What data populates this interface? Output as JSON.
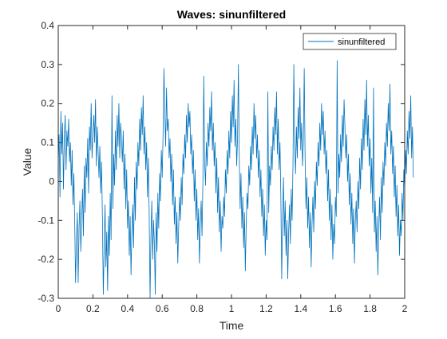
{
  "chart_data": {
    "type": "line",
    "title": "Waves: sinunfiltered",
    "xlabel": "Time",
    "ylabel": "Value",
    "xlim": [
      0,
      2
    ],
    "ylim": [
      -0.3,
      0.4
    ],
    "x_ticks": [
      0,
      0.2,
      0.4,
      0.6,
      0.8,
      1,
      1.2,
      1.4,
      1.6,
      1.8,
      2
    ],
    "x_tick_labels": [
      "0",
      "0.2",
      "0.4",
      "0.6",
      "0.8",
      "1",
      "1.2",
      "1.4",
      "1.6",
      "1.8",
      "2"
    ],
    "y_ticks": [
      -0.3,
      -0.2,
      -0.1,
      0,
      0.1,
      0.2,
      0.3,
      0.4
    ],
    "y_tick_labels": [
      "-0.3",
      "-0.2",
      "-0.1",
      "0",
      "0.1",
      "0.2",
      "0.3",
      "0.4"
    ],
    "grid": false,
    "legend_position": "top-right",
    "series": [
      {
        "name": "sinunfiltered",
        "color": "#0072BD",
        "x_start": 0,
        "x_step": 0.005,
        "y": [
          0.05,
          0.12,
          -0.04,
          0.18,
          0.07,
          0.15,
          -0.02,
          0.11,
          0.17,
          0.03,
          0.13,
          0.09,
          0.16,
          0.05,
          0.1,
          -0.01,
          0.08,
          -0.06,
          0.02,
          -0.11,
          -0.04,
          -0.15,
          -0.08,
          -0.26,
          -0.12,
          -0.05,
          -0.18,
          -0.1,
          -0.02,
          -0.14,
          0.04,
          -0.08,
          0.06,
          0.01,
          0.11,
          -0.03,
          0.14,
          0.08,
          0.2,
          0.06,
          0.12,
          0.17,
          0.1,
          0.21,
          0.04,
          0.14,
          0.08,
          0.01,
          0.09,
          -0.03,
          0.05,
          -0.1,
          0.01,
          -0.17,
          -0.06,
          -0.22,
          -0.13,
          -0.28,
          -0.09,
          -0.19,
          -0.03,
          -0.15,
          0.02,
          -0.07,
          0.07,
          -0.01,
          0.13,
          0.03,
          0.17,
          0.09,
          0.2,
          0.06,
          0.15,
          0.11,
          0.05,
          0.13,
          -0.02,
          0.07,
          -0.07,
          0.03,
          -0.12,
          -0.05,
          -0.19,
          -0.09,
          -0.24,
          -0.13,
          -0.06,
          -0.17,
          0.01,
          -0.1,
          0.05,
          -0.02,
          0.1,
          0.04,
          0.16,
          0.08,
          0.19,
          0.12,
          0.22,
          0.07,
          0.14,
          0.03,
          0.1,
          -0.04,
          0.06,
          -0.09,
          0.02,
          -0.14,
          -0.05,
          -0.2,
          -0.1,
          -0.16,
          -0.29,
          -0.08,
          -0.18,
          -0.03,
          -0.12,
          0.02,
          -0.05,
          0.08,
          0.01,
          0.12,
          0.05,
          0.18,
          0.09,
          0.24,
          0.13,
          0.16,
          0.06,
          0.11,
          0.0,
          0.07,
          -0.06,
          0.03,
          -0.11,
          -0.04,
          -0.16,
          -0.08,
          -0.21,
          -0.12,
          -0.04,
          -0.1,
          0.01,
          -0.06,
          0.07,
          0.02,
          0.12,
          0.06,
          0.17,
          0.1,
          0.2,
          0.14,
          0.18,
          0.07,
          0.12,
          0.02,
          0.08,
          -0.05,
          0.03,
          -0.1,
          -0.02,
          -0.15,
          -0.07,
          -0.21,
          -0.11,
          -0.05,
          -0.14,
          0.0,
          -0.08,
          0.05,
          -0.01,
          0.1,
          0.04,
          0.15,
          0.09,
          0.19,
          0.13,
          0.23,
          0.08,
          0.15,
          0.04,
          0.1,
          -0.03,
          0.06,
          -0.08,
          0.01,
          -0.13,
          -0.05,
          -0.18,
          -0.09,
          -0.12,
          -0.04,
          -0.09,
          0.03,
          -0.03,
          0.08,
          0.02,
          0.13,
          0.06,
          0.18,
          0.1,
          0.22,
          0.14,
          0.26,
          0.09,
          0.16,
          0.04,
          0.11,
          -0.02,
          0.06,
          -0.07,
          0.02,
          -0.12,
          -0.04,
          -0.17,
          -0.08,
          -0.23,
          -0.11,
          -0.03,
          -0.07,
          0.04,
          -0.01,
          0.09,
          0.03,
          0.14,
          0.07,
          0.2,
          0.11,
          0.17,
          0.06,
          0.12,
          0.01,
          0.08,
          -0.04,
          0.03,
          -0.09,
          -0.02,
          -0.14,
          -0.06,
          -0.19,
          -0.1,
          -0.15,
          -0.03,
          -0.08,
          0.04,
          -0.01,
          0.09,
          0.03,
          0.14,
          0.08,
          0.19,
          0.12,
          0.23,
          0.07,
          0.16,
          0.03,
          0.1,
          -0.04,
          0.05,
          -0.09,
          0.01,
          -0.14,
          -0.05,
          -0.19,
          -0.1,
          -0.25,
          -0.13,
          -0.06,
          -0.16,
          -0.02,
          -0.1,
          0.04,
          -0.03,
          0.09,
          0.02,
          0.14,
          0.06,
          0.19,
          0.11,
          0.24,
          0.08,
          0.15,
          0.04,
          0.1,
          -0.02,
          0.06,
          -0.07,
          0.01,
          -0.12,
          -0.04,
          -0.17,
          -0.08,
          -0.22,
          -0.11,
          -0.04,
          -0.13,
          0.0,
          -0.07,
          0.05,
          -0.01,
          0.1,
          0.04,
          0.15,
          0.08,
          0.2,
          0.12,
          0.18,
          0.07,
          0.13,
          0.02,
          0.08,
          -0.05,
          0.03,
          -0.1,
          -0.02,
          -0.15,
          -0.06,
          -0.2,
          -0.11,
          -0.16,
          -0.04,
          -0.09,
          0.02,
          -0.03,
          0.07,
          0.01,
          0.12,
          0.05,
          0.17,
          0.09,
          0.21,
          0.14,
          0.06,
          0.12,
          0.0,
          0.07,
          -0.06,
          0.02,
          -0.11,
          -0.03,
          -0.16,
          -0.07,
          -0.21,
          -0.1,
          -0.05,
          -0.13,
          0.0,
          -0.07,
          0.06,
          -0.02,
          0.11,
          0.03,
          0.16,
          0.08,
          0.21,
          0.12,
          0.26,
          0.09,
          0.17,
          0.04,
          0.11,
          -0.03,
          0.06,
          -0.08,
          0.01,
          -0.13,
          -0.05,
          -0.18,
          -0.09,
          -0.24,
          -0.12,
          -0.04,
          -0.15,
          0.01,
          -0.08,
          0.05,
          -0.01,
          0.1,
          0.04,
          0.15,
          0.09,
          0.2,
          0.13,
          0.25,
          0.07,
          0.13,
          0.02,
          0.09,
          -0.04,
          0.04,
          -0.09,
          -0.01,
          -0.14,
          -0.06,
          -0.19,
          -0.1,
          -0.14,
          -0.03,
          -0.1,
          0.03,
          -0.02,
          0.08,
          0.02,
          0.13,
          0.07,
          0.18,
          0.11,
          0.22,
          0.06,
          0.14,
          0.01
        ]
      }
    ],
    "features": [
      {
        "x": 0.1,
        "y": -0.26
      },
      {
        "x": 0.26,
        "y": -0.29
      },
      {
        "x": 0.31,
        "y": 0.22
      },
      {
        "x": 0.53,
        "y": -0.3
      },
      {
        "x": 0.61,
        "y": 0.29
      },
      {
        "x": 0.84,
        "y": 0.27
      },
      {
        "x": 1.04,
        "y": 0.3
      },
      {
        "x": 1.21,
        "y": 0.23
      },
      {
        "x": 1.29,
        "y": -0.25
      },
      {
        "x": 1.36,
        "y": 0.3
      },
      {
        "x": 1.42,
        "y": 0.29
      },
      {
        "x": 1.61,
        "y": 0.31
      },
      {
        "x": 1.82,
        "y": 0.24
      }
    ]
  }
}
